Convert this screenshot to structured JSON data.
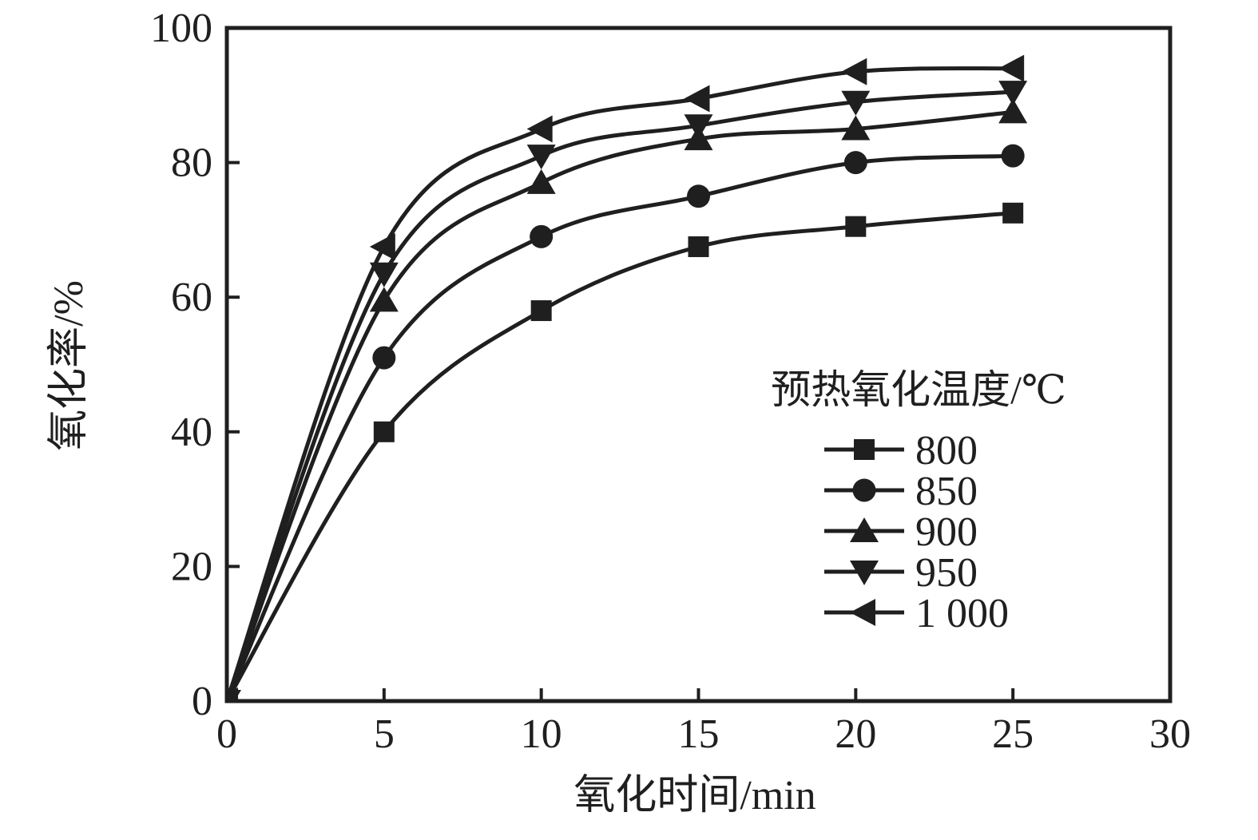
{
  "colors": {
    "ink": "#1f1f1f",
    "background": "#ffffff"
  },
  "chart_data": {
    "type": "line",
    "title": "",
    "xlabel": "氧化时间/min",
    "ylabel": "氧化率/%",
    "xlim": [
      0,
      30
    ],
    "ylim": [
      0,
      100
    ],
    "xticks": [
      0,
      5,
      10,
      15,
      20,
      25,
      30
    ],
    "yticks": [
      0,
      20,
      40,
      60,
      80,
      100
    ],
    "grid": false,
    "legend_title": "预热氧化温度/℃",
    "legend_position": "inside-right-middle",
    "x": [
      0,
      5,
      10,
      15,
      20,
      25
    ],
    "series": [
      {
        "name": "800",
        "marker": "square",
        "values": [
          0,
          40,
          58,
          67.5,
          70.5,
          72.5
        ]
      },
      {
        "name": "850",
        "marker": "circle",
        "values": [
          0,
          51,
          69,
          75,
          80,
          81
        ]
      },
      {
        "name": "900",
        "marker": "triangle-up",
        "values": [
          0,
          59.5,
          77,
          83.5,
          85,
          87.5
        ]
      },
      {
        "name": "950",
        "marker": "triangle-down",
        "values": [
          0,
          63.5,
          81,
          85.5,
          89,
          90.5
        ]
      },
      {
        "name": "1 000",
        "marker": "triangle-left",
        "values": [
          0,
          67.5,
          85,
          89.5,
          93.5,
          94
        ]
      }
    ]
  }
}
